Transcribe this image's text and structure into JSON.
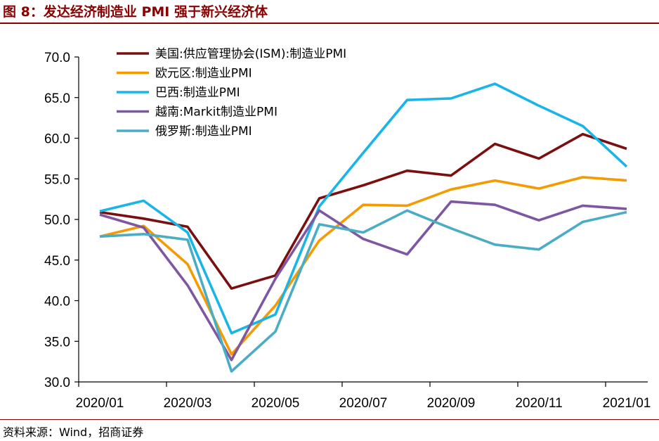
{
  "figure": {
    "title": "图 8：发达经济制造业 PMI 强于新兴经济体",
    "source": "资料来源：Wind，招商证券"
  },
  "chart_data": {
    "type": "line",
    "title": "图 8：发达经济制造业 PMI 强于新兴经济体",
    "xlabel": "",
    "ylabel": "",
    "ylim": [
      30,
      70
    ],
    "yticks": [
      "30.0",
      "35.0",
      "40.0",
      "45.0",
      "50.0",
      "55.0",
      "60.0",
      "65.0",
      "70.0"
    ],
    "x": [
      "2020/01",
      "2020/02",
      "2020/03",
      "2020/04",
      "2020/05",
      "2020/06",
      "2020/07",
      "2020/08",
      "2020/09",
      "2020/10",
      "2020/11",
      "2020/12",
      "2021/01"
    ],
    "xtick_labels": [
      "2020/01",
      "2020/03",
      "2020/05",
      "2020/07",
      "2020/09",
      "2020/11",
      "2021/01"
    ],
    "legend_position": "top-left",
    "series": [
      {
        "name": "美国:供应管理协会(ISM):制造业PMI",
        "color": "#7B0F0F",
        "values": [
          50.9,
          50.1,
          49.1,
          41.5,
          43.1,
          52.6,
          54.2,
          56.0,
          55.4,
          59.3,
          57.5,
          60.5,
          58.7
        ]
      },
      {
        "name": "欧元区:制造业PMI",
        "color": "#F59A00",
        "values": [
          47.9,
          49.2,
          44.5,
          33.4,
          39.4,
          47.4,
          51.8,
          51.7,
          53.7,
          54.8,
          53.8,
          55.2,
          54.8
        ]
      },
      {
        "name": "巴西:制造业PMI",
        "color": "#19B5E8",
        "values": [
          51.0,
          52.3,
          48.4,
          36.0,
          38.3,
          51.6,
          58.2,
          64.7,
          64.9,
          66.7,
          64.0,
          61.5,
          56.5
        ]
      },
      {
        "name": "越南:Markit制造业PMI",
        "color": "#7E57A3",
        "values": [
          50.6,
          49.0,
          41.9,
          32.7,
          42.7,
          51.1,
          47.6,
          45.7,
          52.2,
          51.8,
          49.9,
          51.7,
          51.3
        ]
      },
      {
        "name": "俄罗斯:制造业PMI",
        "color": "#4BACC6",
        "values": [
          47.9,
          48.2,
          47.5,
          31.3,
          36.2,
          49.4,
          48.4,
          51.1,
          48.9,
          46.9,
          46.3,
          49.7,
          50.9
        ]
      }
    ]
  }
}
